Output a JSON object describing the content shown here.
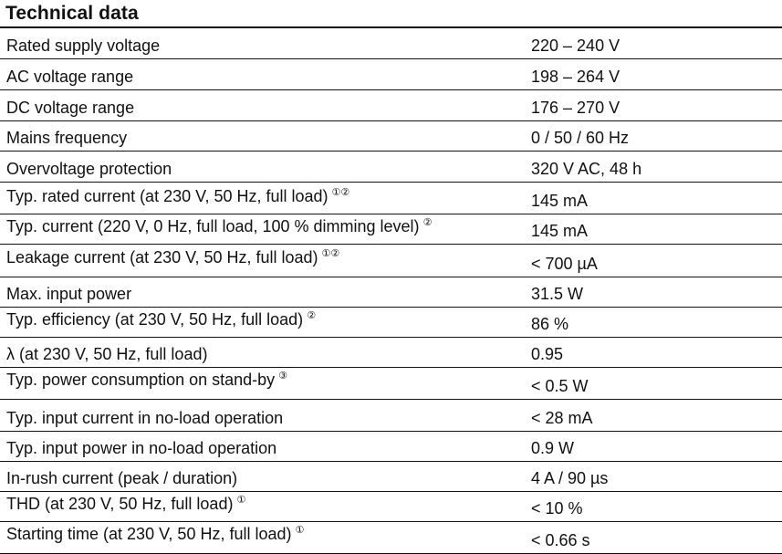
{
  "title": "Technical data",
  "rows": [
    {
      "parameter": "Rated supply voltage",
      "notes": "",
      "value": "220 – 240 V"
    },
    {
      "parameter": "AC voltage range",
      "notes": "",
      "value": "198 – 264 V"
    },
    {
      "parameter": "DC voltage range",
      "notes": "",
      "value": "176 – 270 V"
    },
    {
      "parameter": "Mains frequency",
      "notes": "",
      "value": "0 / 50 / 60 Hz"
    },
    {
      "parameter": "Overvoltage protection",
      "notes": "",
      "value": "320 V AC, 48 h"
    },
    {
      "parameter": "Typ. rated current (at 230 V, 50 Hz, full load)",
      "notes": "①②",
      "value": "145 mA"
    },
    {
      "parameter": "Typ. current (220 V, 0 Hz, full load, 100 % dimming level)",
      "notes": "②",
      "value": "145 mA"
    },
    {
      "parameter": "Leakage current (at 230 V, 50 Hz, full load)",
      "notes": "①②",
      "value": "< 700 µA"
    },
    {
      "parameter": "Max. input power",
      "notes": "",
      "value": "31.5 W"
    },
    {
      "parameter": "Typ. efficiency (at 230 V, 50 Hz, full load)",
      "notes": "②",
      "value": "86 %"
    },
    {
      "parameter": "λ (at 230 V, 50 Hz, full load)",
      "notes": "",
      "value": "0.95"
    },
    {
      "parameter": "Typ. power consumption on stand-by",
      "notes": "③",
      "value": "< 0.5 W"
    },
    {
      "parameter": "Typ. input current in no-load operation",
      "notes": "",
      "value": "< 28 mA"
    },
    {
      "parameter": "Typ. input power in no-load operation",
      "notes": "",
      "value": "0.9 W"
    },
    {
      "parameter": "In-rush current (peak / duration)",
      "notes": "",
      "value": "4 A / 90 µs"
    },
    {
      "parameter": "THD (at 230 V, 50 Hz, full load)",
      "notes": "①",
      "value": "< 10 %"
    },
    {
      "parameter": "Starting time (at 230 V, 50 Hz, full load)",
      "notes": "①",
      "value": "< 0.66 s"
    }
  ]
}
